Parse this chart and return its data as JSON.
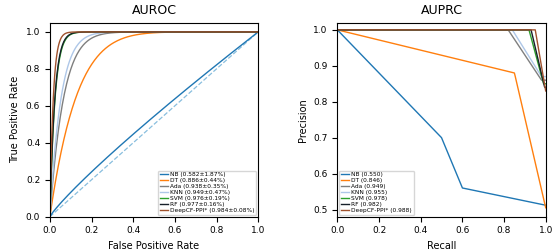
{
  "auroc_title": "AUROC",
  "auprc_title": "AUPRC",
  "auroc_xlabel": "False Positive Rate",
  "auroc_ylabel": "True Positive Rate",
  "auprc_xlabel": "Recall",
  "auprc_ylabel": "Precision",
  "auroc_labels": [
    "NB (0.582±1.87%)",
    "DT (0.886±0.44%)",
    "Ada (0.938±0.35%)",
    "KNN (0.949±0.47%)",
    "SVM (0.976±0.19%)",
    "RF (0.977±0.16%)",
    "DeepCF-PPI* (0.984±0.08%)"
  ],
  "auprc_labels": [
    "NB (0.550)",
    "DT (0.846)",
    "Ada (0.949)",
    "KNN (0.955)",
    "SVM (0.978)",
    "RF (0.982)",
    "DeepCF-PPI* (0.988)"
  ],
  "colors_nb": "#1f77b4",
  "colors_dt": "#ff7f0e",
  "colors_ada": "#7f7f7f",
  "colors_knn": "#aec7e8",
  "colors_svm": "#2ca02c",
  "colors_rf": "#17202a",
  "colors_deep": "#a0522d",
  "diag_color": "#6baed6",
  "ylim_auroc": [
    0.0,
    1.05
  ],
  "ylim_auprc": [
    0.48,
    1.02
  ],
  "yticks_auprc": [
    0.5,
    0.6,
    0.7,
    0.8,
    0.9,
    1.0
  ]
}
